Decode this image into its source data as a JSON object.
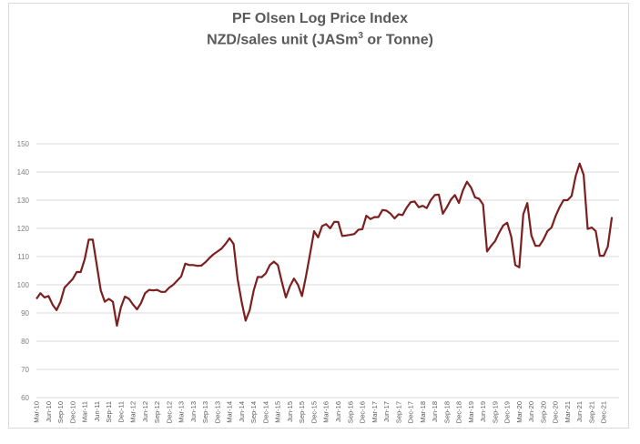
{
  "chart_data": {
    "type": "line",
    "title": "PF Olsen Log Price Index",
    "subtitle_main": "NZD/sales unit (JASm",
    "subtitle_sup": "3",
    "subtitle_end": " or Tonne)",
    "xlabel": "",
    "ylabel": "",
    "ylim": [
      60,
      150
    ],
    "y_ticks": [
      60,
      70,
      80,
      90,
      100,
      110,
      120,
      130,
      140,
      150
    ],
    "grid": true,
    "legend": "none",
    "line_color": "#7b1f1f",
    "x_start": "Mar-10",
    "x_frequency": "monthly",
    "x_tick_every_months": 3,
    "x_tick_labels": [
      "Mar-10",
      "Jun-10",
      "Sep-10",
      "Dec-10",
      "Mar-11",
      "Jun-11",
      "Sep-11",
      "Dec-11",
      "Mar-12",
      "Jun-12",
      "Sep-12",
      "Dec-12",
      "Mar-13",
      "Jun-13",
      "Sep-13",
      "Dec-13",
      "Mar-14",
      "Jun-14",
      "Sep-14",
      "Dec-14",
      "Mar-15",
      "Jun-15",
      "Sep-15",
      "Dec-15",
      "Mar-16",
      "Jun-16",
      "Sep-16",
      "Dec-16",
      "Mar-17",
      "Jun-17",
      "Sep-17",
      "Dec-17",
      "Mar-18",
      "Jun-18",
      "Sep-18",
      "Dec-18",
      "Mar-19",
      "Jun-19",
      "Sep-19",
      "Dec-19",
      "Mar-20",
      "Jun-20",
      "Sep-20",
      "Dec-20",
      "Mar-21",
      "Jun-21",
      "Sep-21",
      "Dec-21"
    ],
    "series": [
      {
        "name": "PF Olsen Log Price Index",
        "values": [
          95,
          97,
          95.5,
          96,
          93,
          91,
          94,
          99,
          100.5,
          102,
          104.5,
          104.5,
          109,
          116,
          116,
          107,
          98,
          94,
          95,
          94,
          85.5,
          92,
          95.8,
          95,
          93,
          91.3,
          93.5,
          97,
          98.2,
          98,
          98.2,
          97.5,
          97.5,
          99,
          100,
          101.5,
          103,
          107.5,
          107,
          107,
          106.7,
          106.8,
          108,
          109.5,
          110.8,
          111.8,
          112.8,
          114.5,
          116.5,
          114.5,
          102,
          94,
          87.3,
          91,
          98,
          102.8,
          102.7,
          104,
          107,
          108.2,
          107,
          101,
          95.5,
          99.5,
          102.2,
          100,
          96,
          103,
          111,
          119,
          116.8,
          120.8,
          121.5,
          120,
          122.3,
          122.3,
          117.3,
          117.5,
          117.7,
          118,
          119.5,
          119.7,
          124.5,
          123.3,
          124,
          124,
          126.5,
          126.3,
          125.2,
          123.5,
          125,
          124.7,
          127.3,
          129.3,
          129.5,
          127.5,
          128,
          127.2,
          130,
          131.8,
          132,
          125.2,
          127.5,
          130.2,
          131.8,
          129,
          133.5,
          136.5,
          134.5,
          131,
          130.5,
          128.5,
          111.8,
          113.8,
          115.5,
          118.5,
          121,
          122,
          117,
          107,
          106.2,
          125,
          129,
          117.5,
          113.8,
          113.8,
          116,
          119,
          120.3,
          124.3,
          127.5,
          130,
          130,
          131.5,
          138.5,
          143,
          139,
          119.8,
          120.3,
          119,
          110.3,
          110.3,
          113.5,
          124
        ]
      }
    ]
  }
}
